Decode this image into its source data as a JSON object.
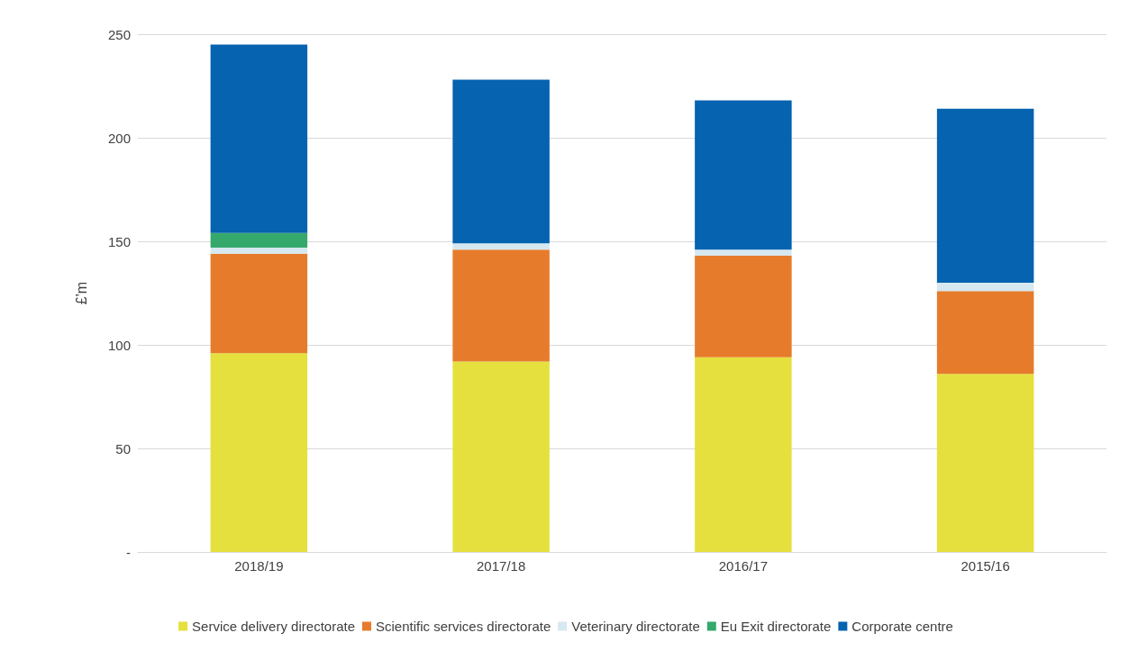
{
  "chart_data": {
    "type": "bar",
    "stacked": true,
    "ylabel": "£'m",
    "categories": [
      "2018/19",
      "2017/18",
      "2016/17",
      "2015/16"
    ],
    "series": [
      {
        "name": "Service delivery directorate",
        "color": "#e5e03d",
        "values": [
          96,
          92,
          94,
          86
        ]
      },
      {
        "name": "Scientific services directorate",
        "color": "#e67c2b",
        "values": [
          48,
          54,
          49,
          40
        ]
      },
      {
        "name": "Veterinary directorate",
        "color": "#d6e8f0",
        "values": [
          3,
          3,
          3,
          4
        ]
      },
      {
        "name": "Eu Exit directorate",
        "color": "#35a96b",
        "values": [
          7,
          0,
          0,
          0
        ]
      },
      {
        "name": "Corporate centre",
        "color": "#0563b0",
        "values": [
          91,
          79,
          72,
          84
        ]
      }
    ],
    "ylim": [
      0,
      250
    ],
    "yticks": [
      {
        "value": 0,
        "label": "-"
      },
      50,
      100,
      150,
      200,
      250
    ],
    "grid": "y",
    "legend": "bottom"
  }
}
